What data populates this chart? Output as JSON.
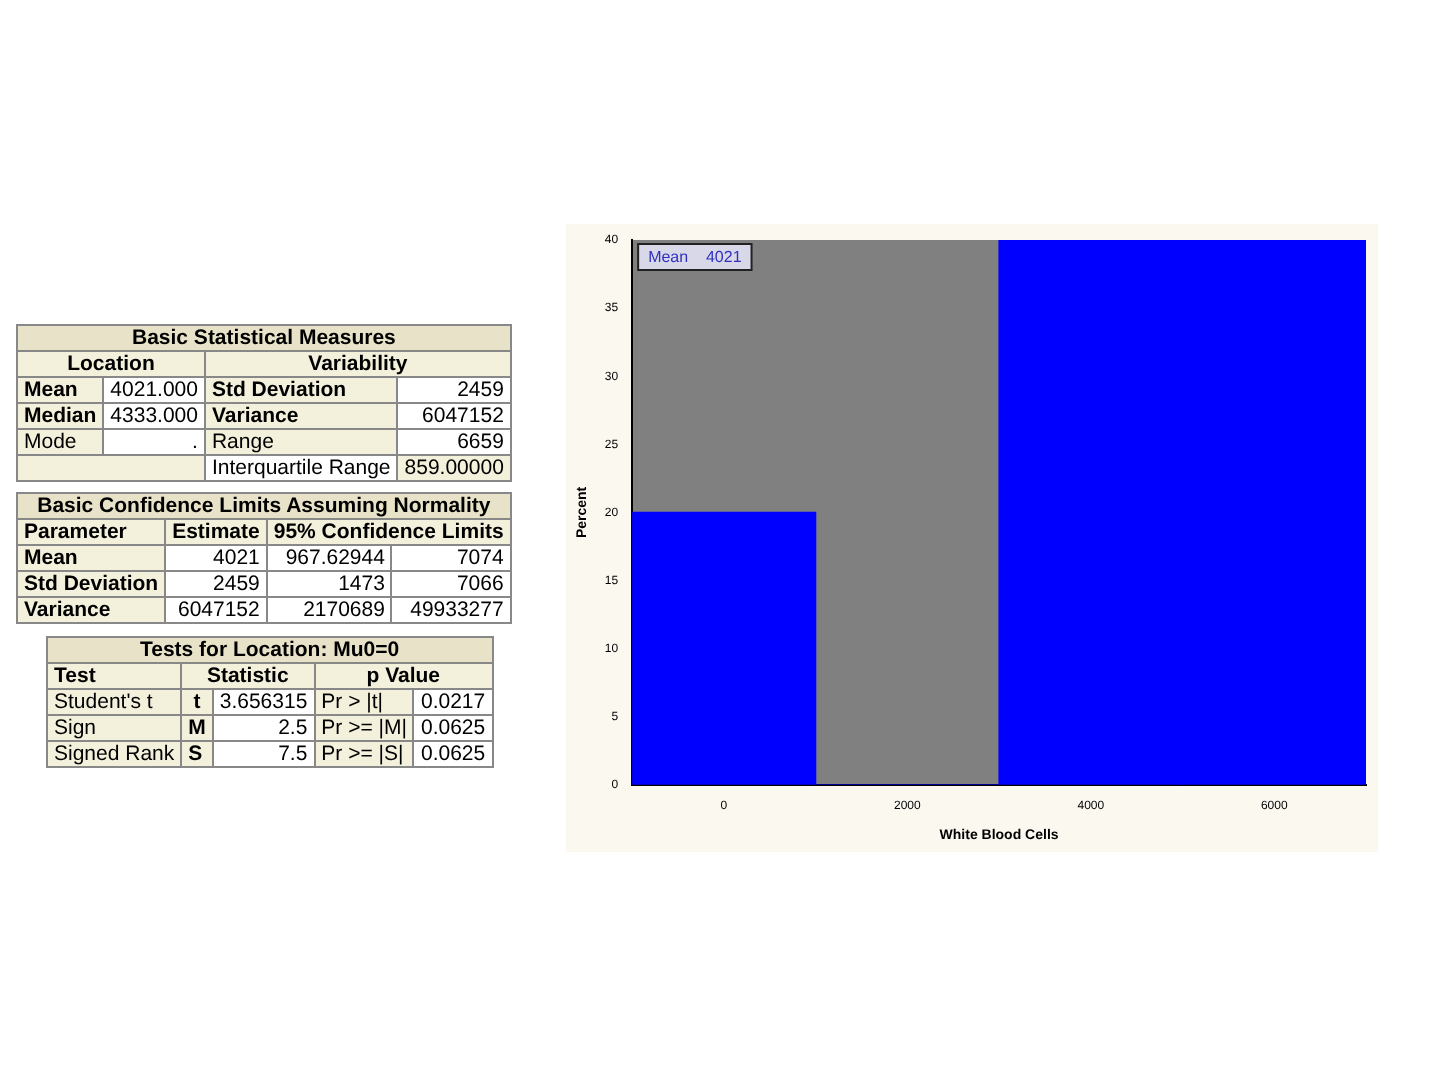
{
  "chart_data": [
    {
      "type": "other",
      "title": "Basic Statistical Measures",
      "annotations": [
        "Location",
        "Variability",
        "Mean",
        "4021.000",
        "Std Deviation",
        "2459",
        "Median",
        "4333.000",
        "Variance",
        "6047152",
        "Mode",
        ".",
        "Range",
        "6659",
        "Interquartile Range",
        "859.00000"
      ]
    },
    {
      "type": "other",
      "title": "Basic Confidence Limits Assuming Normality",
      "annotations": [
        "Parameter",
        "Estimate",
        "95% Confidence Limits",
        "Mean",
        "4021",
        "967.62944",
        "7074",
        "Std Deviation",
        "2459",
        "1473",
        "7066",
        "Variance",
        "6047152",
        "2170689",
        "49933277"
      ]
    },
    {
      "type": "other",
      "title": "Tests for Location: Mu0=0",
      "annotations": [
        "Test",
        "Statistic",
        "p Value",
        "Student's t",
        "t",
        "3.656315",
        "Pr > |t|",
        "0.0217",
        "Sign",
        "M",
        "2.5",
        "Pr >= |M|",
        "0.0625",
        "Signed Rank",
        "S",
        "7.5",
        "Pr >= |S|",
        "0.0625"
      ]
    },
    {
      "type": "histogram",
      "xlabel": "White Blood Cells",
      "ylabel": "Percent",
      "bins": [
        -1000,
        1000,
        3000,
        5000,
        7000
      ],
      "values": [
        20,
        0,
        40,
        40
      ],
      "color": "#0000ff",
      "xlim": [
        -1000,
        7000
      ],
      "xticks": [
        0,
        2000,
        4000,
        6000
      ],
      "ylim": [
        0,
        40
      ],
      "yticks": [
        0,
        5,
        10,
        15,
        20,
        25,
        30,
        35,
        40
      ],
      "grid": false,
      "annotations": [
        "Mean    4021"
      ]
    }
  ]
}
